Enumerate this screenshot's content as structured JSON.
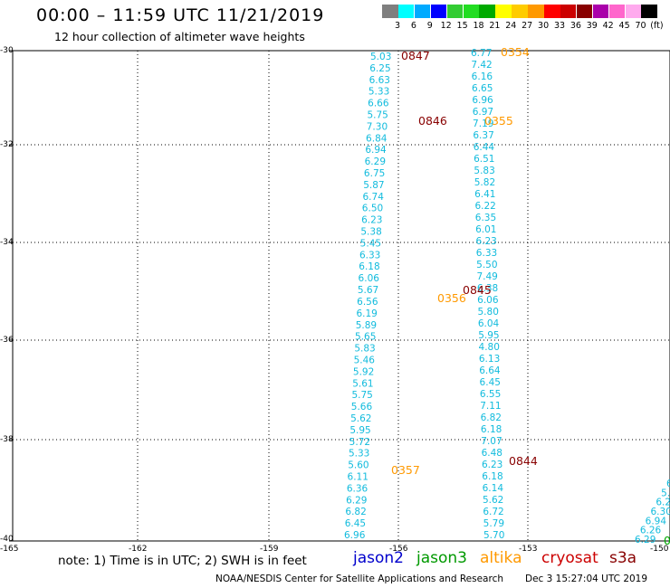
{
  "header": {
    "title": "00:00 – 11:59 UTC 11/21/2019",
    "subtitle": "12 hour collection of altimeter wave heights"
  },
  "color_scale": {
    "labels": [
      "3",
      "6",
      "9",
      "12",
      "15",
      "18",
      "21",
      "24",
      "27",
      "30",
      "33",
      "36",
      "39",
      "42",
      "45",
      "70",
      "(ft)"
    ],
    "colors": [
      "#7f7f7f",
      "#00ffff",
      "#00aaff",
      "#0000ff",
      "#33cc33",
      "#22dd22",
      "#00aa00",
      "#ffff00",
      "#ffcc00",
      "#ff9900",
      "#ff0000",
      "#cc0000",
      "#880000",
      "#aa00aa",
      "#ff66cc",
      "#ffaaee",
      "#000000"
    ]
  },
  "axes": {
    "lat_labels": [
      "-30",
      "-32",
      "-34",
      "-36",
      "-38",
      "-40"
    ],
    "lon_labels": [
      "-165",
      "-162",
      "-159",
      "-156",
      "-153",
      "-150"
    ]
  },
  "track_colors": {
    "wave": "#11bbdd",
    "time_dark": "#880000",
    "time_orange": "#ff9900",
    "s3a": "#00aa00"
  },
  "tracks": {
    "left": [
      "5.03",
      "6.25",
      "6.63",
      "5.33",
      "6.66",
      "5.75",
      "7.30",
      "6.84",
      "6.94",
      "6.29",
      "6.75",
      "5.87",
      "6.74",
      "6.50",
      "6.23",
      "5.38",
      "5.45",
      "6.33",
      "6.18",
      "6.06",
      "5.67",
      "6.56",
      "6.19",
      "5.89",
      "5.65",
      "5.83",
      "5.46",
      "5.92",
      "5.61",
      "5.75",
      "5.66",
      "5.62",
      "5.95",
      "5.72",
      "5.33",
      "5.60",
      "6.11",
      "6.36",
      "6.29",
      "6.82",
      "6.45",
      "6.96"
    ],
    "right": [
      "6.77",
      "7.42",
      "6.16",
      "6.65",
      "6.96",
      "6.97",
      "7.19",
      "6.37",
      "6.44",
      "6.51",
      "5.83",
      "5.82",
      "6.41",
      "6.22",
      "6.35",
      "6.01",
      "6.23",
      "6.33",
      "5.50",
      "7.49",
      "6.38",
      "6.06",
      "5.80",
      "6.04",
      "5.95",
      "4.80",
      "6.13",
      "6.64",
      "6.45",
      "6.55",
      "7.11",
      "6.82",
      "6.18",
      "7.07",
      "6.48",
      "6.23",
      "6.18",
      "6.14",
      "5.62",
      "6.72",
      "5.79",
      "5.70"
    ],
    "far_right": [
      "6",
      "5.",
      "6.2",
      "6.30",
      "6.94",
      "6.26",
      "6.29"
    ]
  },
  "time_labels": {
    "t0847": "0847",
    "t0354": "0354",
    "t0846": "0846",
    "t0355": "0355",
    "t0845": "0845",
    "t0356": "0356",
    "t0844": "0844",
    "t0357": "0357"
  },
  "footer": {
    "note": "note: 1) Time is in UTC; 2) SWH is in feet",
    "satellites": {
      "jason2": "jason2",
      "jason3": "jason3",
      "altika": "altika",
      "cryosat": "cryosat",
      "s3a": "s3a",
      "s3a_tail": "0"
    },
    "sat_colors": {
      "jason2": "#0000cc",
      "jason3": "#009900",
      "altika": "#ff9900",
      "cryosat": "#cc0000",
      "s3a": "#880000"
    },
    "credit": "NOAA/NESDIS Center for Satellite Applications and Research",
    "timestamp": "Dec  3 15:27:04 UTC 2019"
  }
}
